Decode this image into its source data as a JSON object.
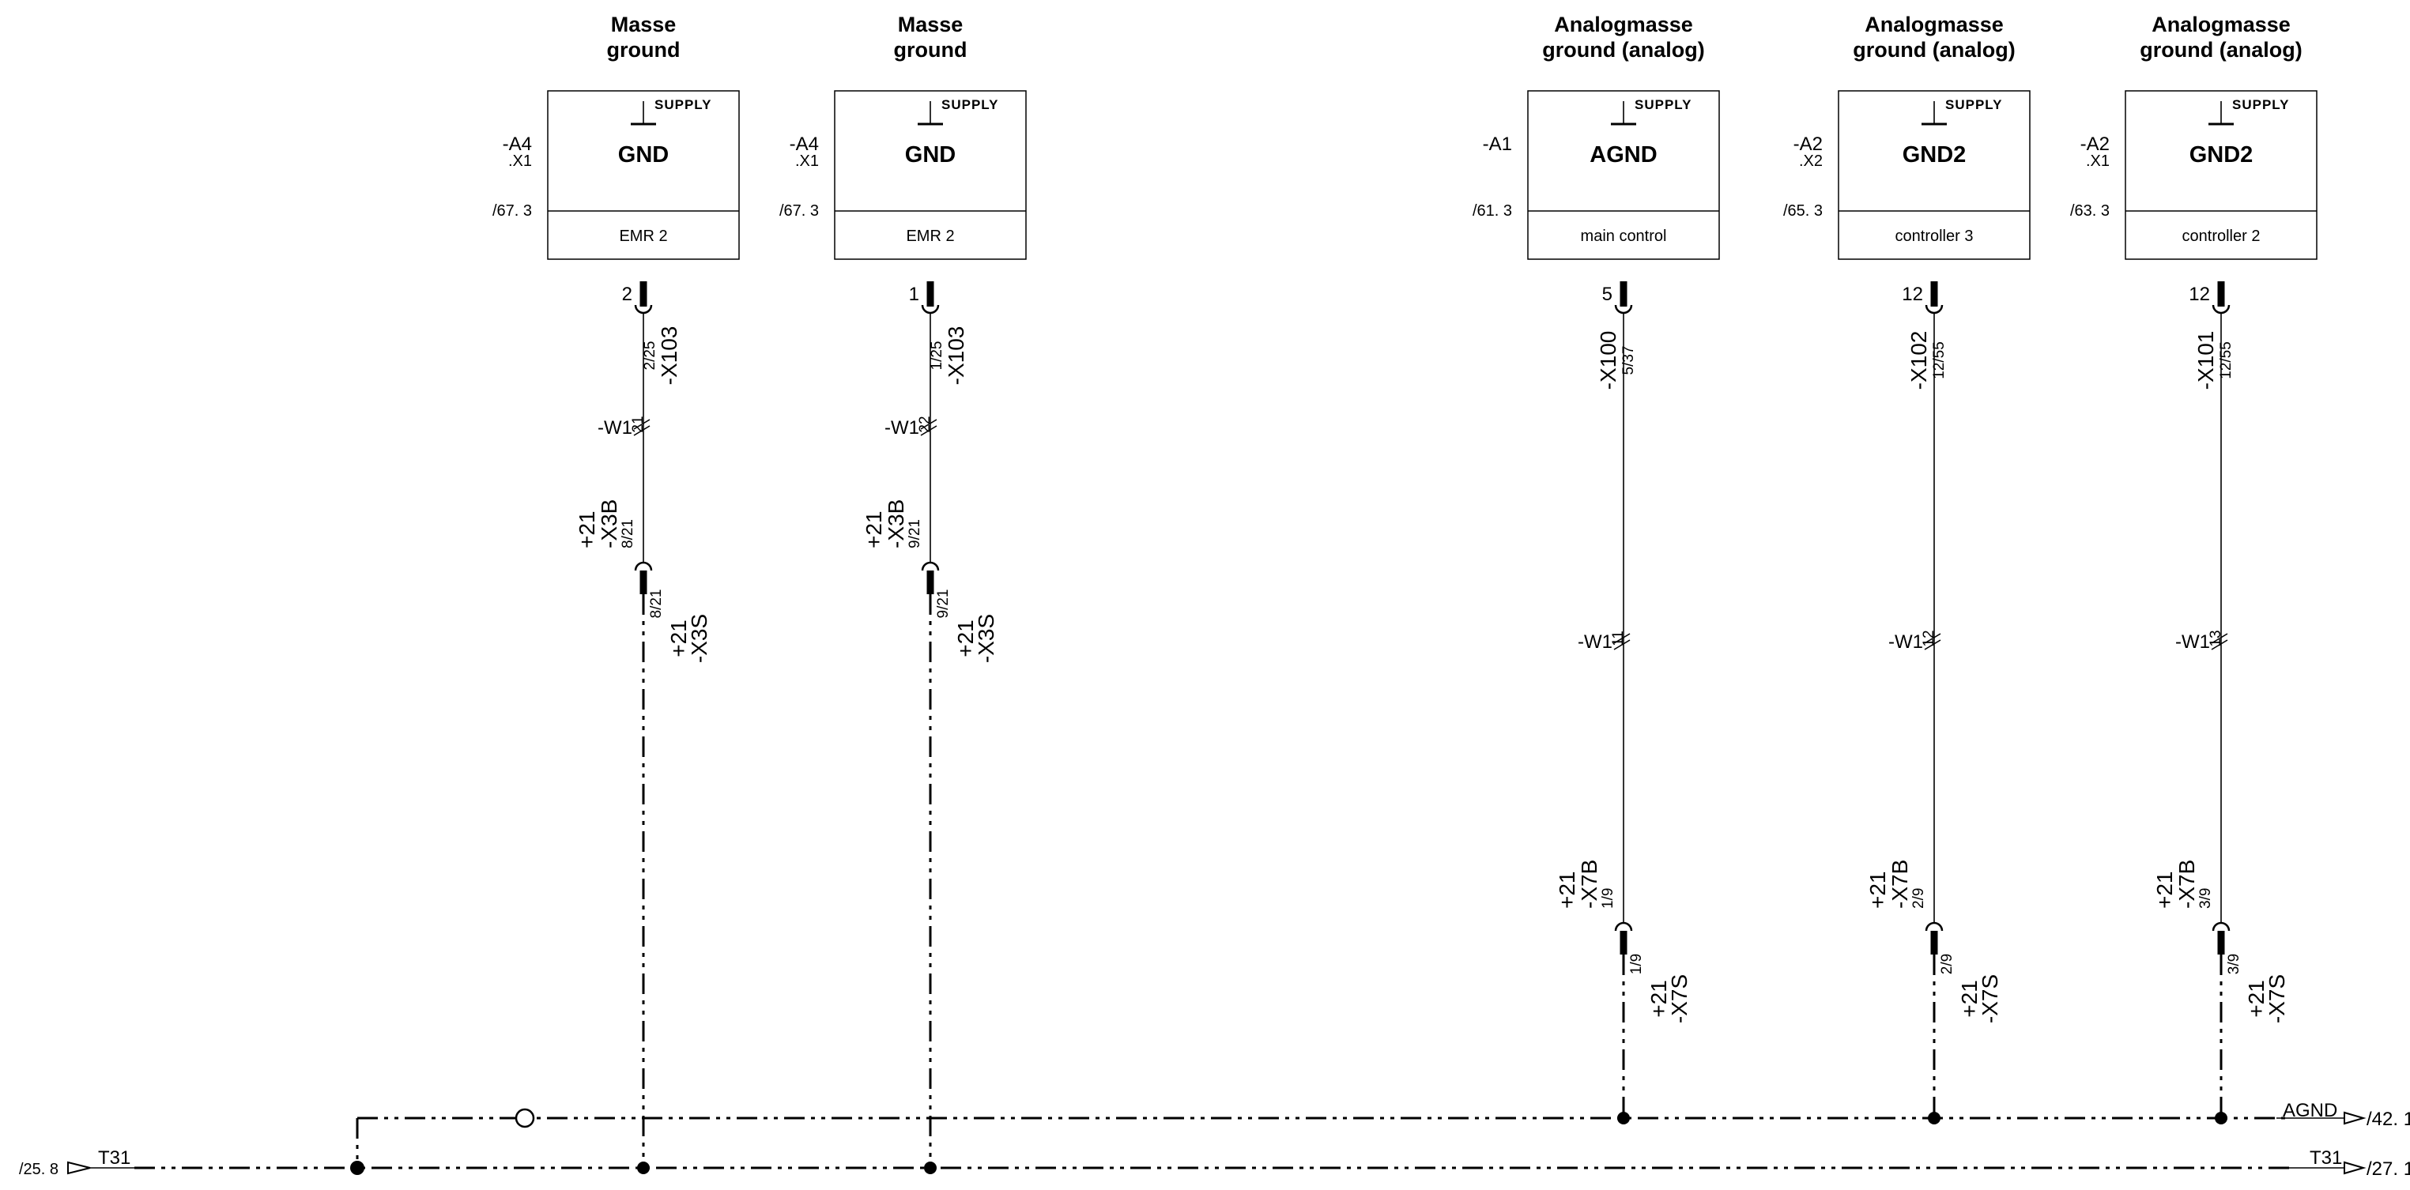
{
  "components": [
    {
      "id": "a4-x1-gnd-1",
      "header1": "Masse",
      "header2": "ground",
      "ref": "-A4",
      "ref_sub": ".X1",
      "page_ref": "/67. 3",
      "name": "GND",
      "supply": "SUPPLY",
      "footer": "EMR 2",
      "pin": "2",
      "conn_top": "-X103",
      "conn_top_pin": "2/25",
      "cable": "-W1",
      "cable_core": "21",
      "plug_mid_ref": [
        "+21",
        "-X3B"
      ],
      "plug_mid_pin": "8/21",
      "plug_low_pin": "8/21",
      "plug_low_ref": [
        "+21",
        "-X3S"
      ]
    },
    {
      "id": "a4-x1-gnd-2",
      "header1": "Masse",
      "header2": "ground",
      "ref": "-A4",
      "ref_sub": ".X1",
      "page_ref": "/67. 3",
      "name": "GND",
      "supply": "SUPPLY",
      "footer": "EMR 2",
      "pin": "1",
      "conn_top": "-X103",
      "conn_top_pin": "1/25",
      "cable": "-W1",
      "cable_core": "22",
      "plug_mid_ref": [
        "+21",
        "-X3B"
      ],
      "plug_mid_pin": "9/21",
      "plug_low_pin": "9/21",
      "plug_low_ref": [
        "+21",
        "-X3S"
      ]
    },
    {
      "id": "a1-agnd",
      "header1": "Analogmasse",
      "header2": "ground (analog)",
      "ref": "-A1",
      "ref_sub": "",
      "page_ref": "/61. 3",
      "name": "AGND",
      "supply": "SUPPLY",
      "footer": "main control",
      "pin": "5",
      "conn_top": "-X100",
      "conn_top_pin": "5/37",
      "cable": "-W1",
      "cable_core": "11",
      "plug_mid_ref": [
        "+21",
        "-X7B"
      ],
      "plug_mid_pin": "1/9",
      "plug_low_pin": "1/9",
      "plug_low_ref": [
        "+21",
        "-X7S"
      ]
    },
    {
      "id": "a2-x2-gnd2",
      "header1": "Analogmasse",
      "header2": "ground (analog)",
      "ref": "-A2",
      "ref_sub": ".X2",
      "page_ref": "/65. 3",
      "name": "GND2",
      "supply": "SUPPLY",
      "footer": "controller 3",
      "pin": "12",
      "conn_top": "-X102",
      "conn_top_pin": "12/55",
      "cable": "-W1",
      "cable_core": "12",
      "plug_mid_ref": [
        "+21",
        "-X7B"
      ],
      "plug_mid_pin": "2/9",
      "plug_low_pin": "2/9",
      "plug_low_ref": [
        "+21",
        "-X7S"
      ]
    },
    {
      "id": "a2-x1-gnd2",
      "header1": "Analogmasse",
      "header2": "ground (analog)",
      "ref": "-A2",
      "ref_sub": ".X1",
      "page_ref": "/63. 3",
      "name": "GND2",
      "supply": "SUPPLY",
      "footer": "controller 2",
      "pin": "12",
      "conn_top": "-X101",
      "conn_top_pin": "12/55",
      "cable": "-W1",
      "cable_core": "13",
      "plug_mid_ref": [
        "+21",
        "-X7B"
      ],
      "plug_mid_pin": "3/9",
      "plug_low_pin": "3/9",
      "plug_low_ref": [
        "+21",
        "-X7S"
      ]
    }
  ],
  "buses": {
    "agnd": {
      "label": "AGND",
      "ref_out": "/42. 1"
    },
    "t31": {
      "label": "T31",
      "ref_in": "/25. 8",
      "ref_out": "/27. 1"
    }
  }
}
